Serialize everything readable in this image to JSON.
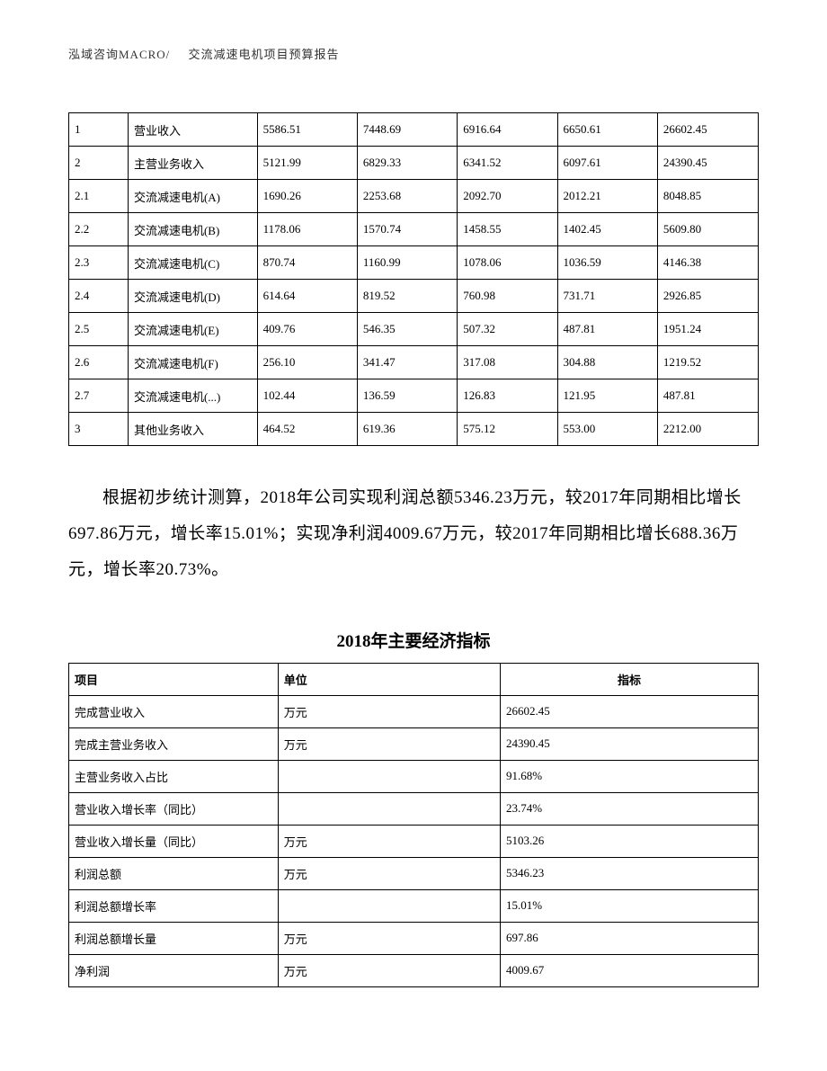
{
  "header": {
    "left": "泓域咨询MACRO/",
    "right": "交流减速电机项目预算报告"
  },
  "table1": {
    "rows": [
      {
        "c0": "1",
        "c1": "营业收入",
        "c2": "5586.51",
        "c3": "7448.69",
        "c4": "6916.64",
        "c5": "6650.61",
        "c6": "26602.45"
      },
      {
        "c0": "2",
        "c1": "主营业务收入",
        "c2": "5121.99",
        "c3": "6829.33",
        "c4": "6341.52",
        "c5": "6097.61",
        "c6": "24390.45"
      },
      {
        "c0": "2.1",
        "c1": "交流减速电机(A)",
        "c2": "1690.26",
        "c3": "2253.68",
        "c4": "2092.70",
        "c5": "2012.21",
        "c6": "8048.85"
      },
      {
        "c0": "2.2",
        "c1": "交流减速电机(B)",
        "c2": "1178.06",
        "c3": "1570.74",
        "c4": "1458.55",
        "c5": "1402.45",
        "c6": "5609.80"
      },
      {
        "c0": "2.3",
        "c1": "交流减速电机(C)",
        "c2": "870.74",
        "c3": "1160.99",
        "c4": "1078.06",
        "c5": "1036.59",
        "c6": "4146.38"
      },
      {
        "c0": "2.4",
        "c1": "交流减速电机(D)",
        "c2": "614.64",
        "c3": "819.52",
        "c4": "760.98",
        "c5": "731.71",
        "c6": "2926.85"
      },
      {
        "c0": "2.5",
        "c1": "交流减速电机(E)",
        "c2": "409.76",
        "c3": "546.35",
        "c4": "507.32",
        "c5": "487.81",
        "c6": "1951.24"
      },
      {
        "c0": "2.6",
        "c1": "交流减速电机(F)",
        "c2": "256.10",
        "c3": "341.47",
        "c4": "317.08",
        "c5": "304.88",
        "c6": "1219.52"
      },
      {
        "c0": "2.7",
        "c1": "交流减速电机(...)",
        "c2": "102.44",
        "c3": "136.59",
        "c4": "126.83",
        "c5": "121.95",
        "c6": "487.81"
      },
      {
        "c0": "3",
        "c1": "其他业务收入",
        "c2": "464.52",
        "c3": "619.36",
        "c4": "575.12",
        "c5": "553.00",
        "c6": "2212.00"
      }
    ]
  },
  "paragraph": "根据初步统计测算，2018年公司实现利润总额5346.23万元，较2017年同期相比增长697.86万元，增长率15.01%；实现净利润4009.67万元，较2017年同期相比增长688.36万元，增长率20.73%。",
  "table2": {
    "title": "2018年主要经济指标",
    "header": {
      "a": "项目",
      "b": "单位",
      "c": "指标"
    },
    "rows": [
      {
        "a": "完成营业收入",
        "b": "万元",
        "c": "26602.45"
      },
      {
        "a": "完成主营业务收入",
        "b": "万元",
        "c": "24390.45"
      },
      {
        "a": "主营业务收入占比",
        "b": "",
        "c": "91.68%"
      },
      {
        "a": "营业收入增长率（同比）",
        "b": "",
        "c": "23.74%"
      },
      {
        "a": "营业收入增长量（同比）",
        "b": "万元",
        "c": "5103.26"
      },
      {
        "a": "利润总额",
        "b": "万元",
        "c": "5346.23"
      },
      {
        "a": "利润总额增长率",
        "b": "",
        "c": "15.01%"
      },
      {
        "a": "利润总额增长量",
        "b": "万元",
        "c": "697.86"
      },
      {
        "a": "净利润",
        "b": "万元",
        "c": "4009.67"
      }
    ]
  }
}
